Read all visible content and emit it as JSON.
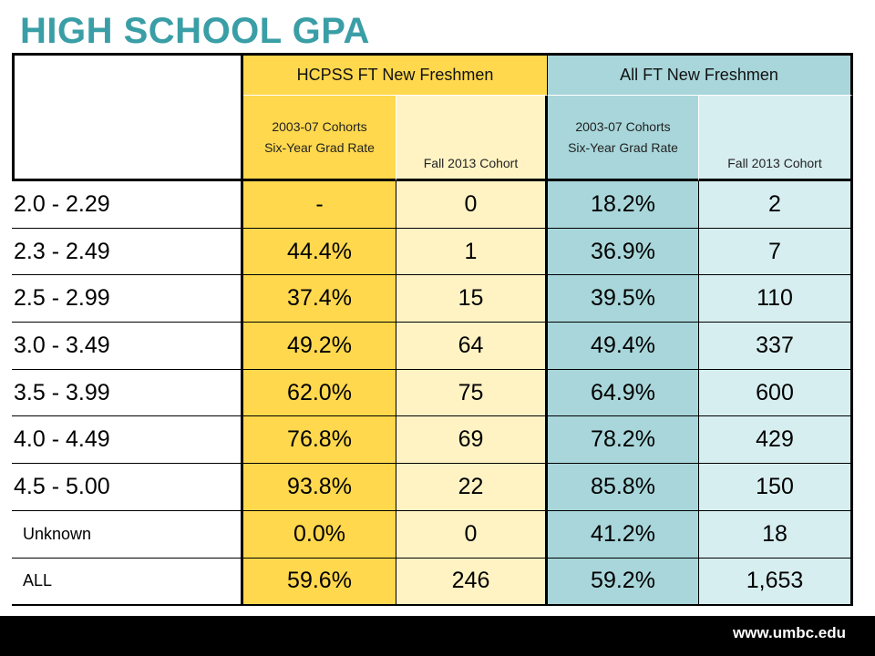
{
  "title": "HIGH SCHOOL GPA",
  "header": {
    "hcpss": "HCPSS FT New Freshmen",
    "all": "All FT New Freshmen",
    "sub_grad": "2003-07 Cohorts Six-Year Grad Rate",
    "sub_cohort": "Fall 2013 Cohort"
  },
  "rows": [
    {
      "label": "2.0 - 2.29",
      "hcpss_rate": "-",
      "hcpss_count": "0",
      "all_rate": "18.2%",
      "all_count": "2"
    },
    {
      "label": "2.3 - 2.49",
      "hcpss_rate": "44.4%",
      "hcpss_count": "1",
      "all_rate": "36.9%",
      "all_count": "7"
    },
    {
      "label": "2.5 - 2.99",
      "hcpss_rate": "37.4%",
      "hcpss_count": "15",
      "all_rate": "39.5%",
      "all_count": "110"
    },
    {
      "label": "3.0 - 3.49",
      "hcpss_rate": "49.2%",
      "hcpss_count": "64",
      "all_rate": "49.4%",
      "all_count": "337"
    },
    {
      "label": "3.5 - 3.99",
      "hcpss_rate": "62.0%",
      "hcpss_count": "75",
      "all_rate": "64.9%",
      "all_count": "600"
    },
    {
      "label": "4.0 - 4.49",
      "hcpss_rate": "76.8%",
      "hcpss_count": "69",
      "all_rate": "78.2%",
      "all_count": "429"
    },
    {
      "label": "4.5 - 5.00",
      "hcpss_rate": "93.8%",
      "hcpss_count": "22",
      "all_rate": "85.8%",
      "all_count": "150"
    },
    {
      "label": "Unknown",
      "hcpss_rate": "0.0%",
      "hcpss_count": "0",
      "all_rate": "41.2%",
      "all_count": "18"
    },
    {
      "label": "ALL",
      "hcpss_rate": "59.6%",
      "hcpss_count": "246",
      "all_rate": "59.2%",
      "all_count": "1,653"
    }
  ],
  "footer": {
    "url": "www.umbc.edu"
  },
  "colors": {
    "title": "#3a9ea6",
    "gold": "#ffd84d",
    "pale_gold": "#fff3c4",
    "teal": "#a8d6da",
    "pale_teal": "#d7eef0"
  }
}
